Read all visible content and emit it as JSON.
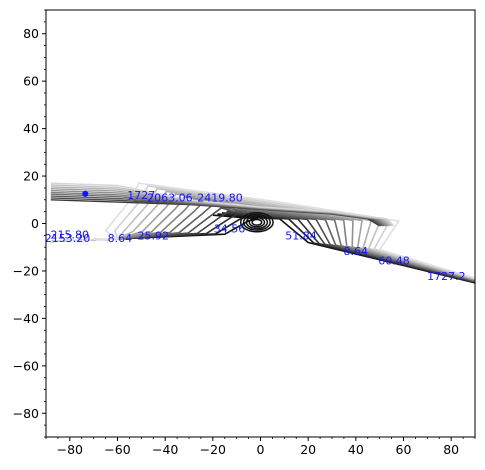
{
  "chart_data": {
    "type": "contour",
    "title": "",
    "xlabel": "",
    "ylabel": "",
    "xlim": [
      -90,
      90
    ],
    "ylim": [
      -90,
      90
    ],
    "x_ticks": [
      -80,
      -60,
      -40,
      -20,
      0,
      20,
      40,
      60,
      80
    ],
    "y_ticks": [
      -80,
      -60,
      -40,
      -20,
      0,
      20,
      40,
      60,
      80
    ],
    "x_tick_labels": [
      "−80",
      "−60",
      "−40",
      "−20",
      "0",
      "20",
      "40",
      "60",
      "80"
    ],
    "y_tick_labels": [
      "−80",
      "−60",
      "−40",
      "−20",
      "0",
      "20",
      "40",
      "60",
      "80"
    ],
    "minor_ticks": true,
    "grid": false,
    "legend": "none",
    "line_color_dark": "#111111",
    "line_color_light": "#e0e0e0",
    "label_color": "#1414ff",
    "contour_labels": [
      {
        "text": "1727",
        "x": -50,
        "y": 11.5
      },
      {
        "text": "2063.06",
        "x": -38,
        "y": 10.5
      },
      {
        "text": "2419.80",
        "x": -17,
        "y": 10.5
      },
      {
        "text": "215.80",
        "x": -80,
        "y": -5
      },
      {
        "text": "2153.20",
        "x": -81,
        "y": -6.5
      },
      {
        "text": "8.64",
        "x": -59,
        "y": -6.5
      },
      {
        "text": "25.92",
        "x": -45,
        "y": -5.5
      },
      {
        "text": "34.56",
        "x": -13,
        "y": -2.5
      },
      {
        "text": "51.84",
        "x": 17,
        "y": -5.5
      },
      {
        "text": "8.64",
        "x": 40,
        "y": -12
      },
      {
        "text": "60.48",
        "x": 56,
        "y": -16
      },
      {
        "text": "1727.2",
        "x": 78,
        "y": -22.5
      }
    ],
    "markers": [
      {
        "x": -73.5,
        "y": 12.5
      }
    ]
  }
}
